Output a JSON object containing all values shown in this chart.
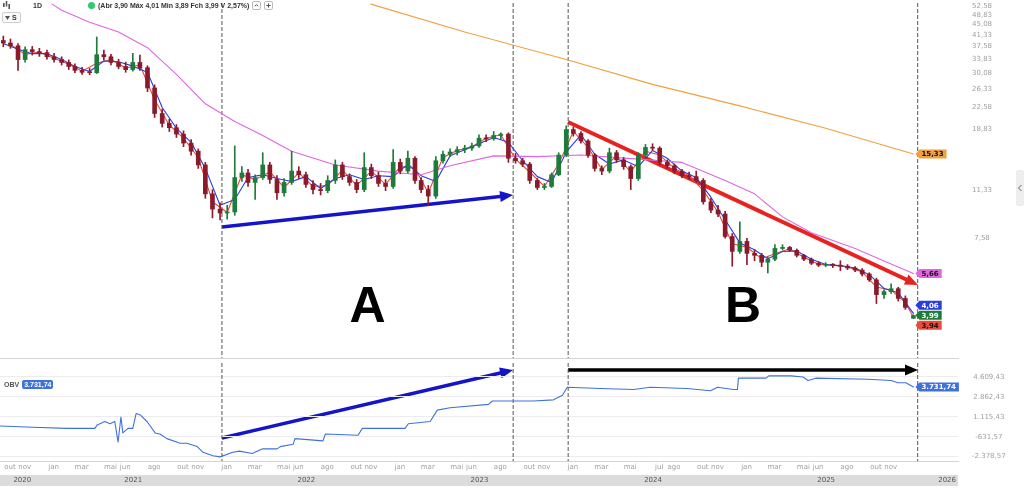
{
  "chart_data": [
    {
      "type": "candlestick",
      "title": "1D",
      "subtitle": "(Abr 3,90 Máx 4,01 Min 3,89 Fch 3,99 V 2,57%)",
      "annotations": [
        "S",
        "A",
        "B"
      ],
      "x": [
        "2020-10-01",
        "2020-10-16",
        "2020-11-01",
        "2020-11-16",
        "2020-12-01",
        "2020-12-16",
        "2021-01-01",
        "2021-01-16",
        "2021-02-01",
        "2021-02-16",
        "2021-03-01",
        "2021-03-16",
        "2021-04-01",
        "2021-04-16",
        "2021-05-01",
        "2021-05-16",
        "2021-06-01",
        "2021-06-16",
        "2021-07-01",
        "2021-07-16",
        "2021-08-01",
        "2021-08-16",
        "2021-09-01",
        "2021-09-16",
        "2021-10-01",
        "2021-10-16",
        "2021-11-01",
        "2021-11-16",
        "2021-12-01",
        "2021-12-16",
        "2022-01-01",
        "2022-01-16",
        "2022-02-01",
        "2022-02-16",
        "2022-03-01",
        "2022-03-16",
        "2022-04-01",
        "2022-04-16",
        "2022-05-01",
        "2022-05-16",
        "2022-06-01",
        "2022-06-16",
        "2022-07-01",
        "2022-07-16",
        "2022-08-01",
        "2022-08-16",
        "2022-09-01",
        "2022-09-16",
        "2022-10-01",
        "2022-10-16",
        "2022-11-01",
        "2022-11-16",
        "2022-12-01",
        "2022-12-16",
        "2023-01-01",
        "2023-01-16",
        "2023-02-01",
        "2023-02-16",
        "2023-03-01",
        "2023-03-16",
        "2023-04-01",
        "2023-04-16",
        "2023-05-01",
        "2023-05-16",
        "2023-06-01",
        "2023-06-16",
        "2023-07-01",
        "2023-07-16",
        "2023-08-01",
        "2023-08-16",
        "2023-09-01",
        "2023-09-16",
        "2023-10-01",
        "2023-10-16",
        "2023-11-01",
        "2023-11-16",
        "2023-12-01",
        "2023-12-16",
        "2024-01-01",
        "2024-01-16",
        "2024-02-01",
        "2024-02-16",
        "2024-03-01",
        "2024-03-16",
        "2024-04-01",
        "2024-04-16",
        "2024-05-01",
        "2024-05-16",
        "2024-06-01",
        "2024-06-16",
        "2024-07-01",
        "2024-07-16",
        "2024-08-01",
        "2024-08-16",
        "2024-09-01",
        "2024-09-16",
        "2024-10-01",
        "2024-10-16",
        "2024-11-01",
        "2024-11-16",
        "2024-12-01",
        "2024-12-16",
        "2025-01-01",
        "2025-01-16",
        "2025-02-01",
        "2025-02-16",
        "2025-03-01",
        "2025-03-16",
        "2025-04-01",
        "2025-04-16",
        "2025-05-01",
        "2025-05-16",
        "2025-06-01",
        "2025-06-16",
        "2025-07-01",
        "2025-07-16",
        "2025-08-01",
        "2025-08-16",
        "2025-09-01",
        "2025-09-16",
        "2025-10-01",
        "2025-10-16",
        "2025-11-01",
        "2025-11-16",
        "2025-12-01",
        "2025-12-16",
        "2026-01-02"
      ],
      "ohlc": [
        [
          39.5,
          41.0,
          37.5,
          38.7
        ],
        [
          38.7,
          40.0,
          37.0,
          37.8
        ],
        [
          37.8,
          38.5,
          30.8,
          33.7
        ],
        [
          33.7,
          37.5,
          33.0,
          36.6
        ],
        [
          36.6,
          37.6,
          35.0,
          36.0
        ],
        [
          36.0,
          37.0,
          34.6,
          35.7
        ],
        [
          35.7,
          36.5,
          33.8,
          34.5
        ],
        [
          34.5,
          35.5,
          33.0,
          33.7
        ],
        [
          33.7,
          34.5,
          32.2,
          32.9
        ],
        [
          32.9,
          33.6,
          31.0,
          31.8
        ],
        [
          31.8,
          32.5,
          30.2,
          30.8
        ],
        [
          30.8,
          31.6,
          29.8,
          30.3
        ],
        [
          30.3,
          31.3,
          29.7,
          30.2
        ],
        [
          30.2,
          40.7,
          30.0,
          35.1
        ],
        [
          35.1,
          36.5,
          33.5,
          34.5
        ],
        [
          34.5,
          35.2,
          32.2,
          32.9
        ],
        [
          32.9,
          33.8,
          31.2,
          31.8
        ],
        [
          31.8,
          33.0,
          30.3,
          31.0
        ],
        [
          31.0,
          35.5,
          30.6,
          32.9
        ],
        [
          32.9,
          35.0,
          30.8,
          31.5
        ],
        [
          31.5,
          32.0,
          25.8,
          26.6
        ],
        [
          26.6,
          27.3,
          20.8,
          21.5
        ],
        [
          21.5,
          22.3,
          19.2,
          19.8
        ],
        [
          19.8,
          20.5,
          18.5,
          19.1
        ],
        [
          19.1,
          19.6,
          17.6,
          18.1
        ],
        [
          18.1,
          18.6,
          16.3,
          16.8
        ],
        [
          16.8,
          17.3,
          15.2,
          15.7
        ],
        [
          15.7,
          16.0,
          13.6,
          14.0
        ],
        [
          14.0,
          14.3,
          10.6,
          11.0
        ],
        [
          11.0,
          11.4,
          9.0,
          9.69
        ],
        [
          9.69,
          10.2,
          8.85,
          9.38
        ],
        [
          9.38,
          10.0,
          8.9,
          9.46
        ],
        [
          9.46,
          16.4,
          9.2,
          12.6
        ],
        [
          12.6,
          13.8,
          12.2,
          13.1
        ],
        [
          13.1,
          13.5,
          11.7,
          12.1
        ],
        [
          12.1,
          12.9,
          10.5,
          12.6
        ],
        [
          12.6,
          15.5,
          12.4,
          14.0
        ],
        [
          14.0,
          14.3,
          12.0,
          12.4
        ],
        [
          12.4,
          12.8,
          10.5,
          11.1
        ],
        [
          11.1,
          12.5,
          10.8,
          12.1
        ],
        [
          12.1,
          15.7,
          11.9,
          13.3
        ],
        [
          13.3,
          13.8,
          12.5,
          12.9
        ],
        [
          12.9,
          13.2,
          11.6,
          11.9
        ],
        [
          11.9,
          12.3,
          11.0,
          11.4
        ],
        [
          11.4,
          12.0,
          10.9,
          11.3
        ],
        [
          11.3,
          12.8,
          11.1,
          12.3
        ],
        [
          12.3,
          14.6,
          12.0,
          14.0
        ],
        [
          14.0,
          14.3,
          12.4,
          12.7
        ],
        [
          12.7,
          13.0,
          11.8,
          12.1
        ],
        [
          12.1,
          12.4,
          11.1,
          11.4
        ],
        [
          11.4,
          15.5,
          11.2,
          13.7
        ],
        [
          13.7,
          14.1,
          12.5,
          12.8
        ],
        [
          12.8,
          13.2,
          11.7,
          12.0
        ],
        [
          12.0,
          12.4,
          11.3,
          11.7
        ],
        [
          11.7,
          15.9,
          11.5,
          14.3
        ],
        [
          14.3,
          14.7,
          13.0,
          13.3
        ],
        [
          13.3,
          15.7,
          13.1,
          14.8
        ],
        [
          14.8,
          15.0,
          12.0,
          12.3
        ],
        [
          12.3,
          12.6,
          11.1,
          11.4
        ],
        [
          11.4,
          11.8,
          10.0,
          10.8
        ],
        [
          10.8,
          15.0,
          10.6,
          14.5
        ],
        [
          14.5,
          15.7,
          14.2,
          15.3
        ],
        [
          15.3,
          16.0,
          15.0,
          15.6
        ],
        [
          15.6,
          16.3,
          15.2,
          15.9
        ],
        [
          15.9,
          16.5,
          15.5,
          16.1
        ],
        [
          16.1,
          16.8,
          15.8,
          16.4
        ],
        [
          16.4,
          18.0,
          16.2,
          17.5
        ],
        [
          17.5,
          18.0,
          17.0,
          17.4
        ],
        [
          17.4,
          18.5,
          17.2,
          17.9
        ],
        [
          17.9,
          18.3,
          17.3,
          18.1
        ],
        [
          18.1,
          18.3,
          14.3,
          14.8
        ],
        [
          14.8,
          15.4,
          14.2,
          14.5
        ],
        [
          14.5,
          14.8,
          13.8,
          14.1
        ],
        [
          14.1,
          14.3,
          12.0,
          12.3
        ],
        [
          12.3,
          12.5,
          11.4,
          11.6
        ],
        [
          11.6,
          12.0,
          11.4,
          11.7
        ],
        [
          11.7,
          13.1,
          11.6,
          12.9
        ],
        [
          12.9,
          15.5,
          12.8,
          15.2
        ],
        [
          15.2,
          19.4,
          15.0,
          18.8
        ],
        [
          18.8,
          19.2,
          17.8,
          18.2
        ],
        [
          18.2,
          18.5,
          16.8,
          17.1
        ],
        [
          17.1,
          17.3,
          14.9,
          15.2
        ],
        [
          15.2,
          15.4,
          13.3,
          13.6
        ],
        [
          13.6,
          13.9,
          12.9,
          13.3
        ],
        [
          13.3,
          16.1,
          13.1,
          15.5
        ],
        [
          15.5,
          15.8,
          14.3,
          14.6
        ],
        [
          14.6,
          14.9,
          13.5,
          13.8
        ],
        [
          13.8,
          14.0,
          11.4,
          12.5
        ],
        [
          12.5,
          15.5,
          12.3,
          15.2
        ],
        [
          15.2,
          16.6,
          15.0,
          16.2
        ],
        [
          16.2,
          16.7,
          15.8,
          16.1
        ],
        [
          16.1,
          16.3,
          14.0,
          14.3
        ],
        [
          14.3,
          14.6,
          13.6,
          13.9
        ],
        [
          13.9,
          14.1,
          13.0,
          13.3
        ],
        [
          13.3,
          13.5,
          12.6,
          12.8
        ],
        [
          12.8,
          13.2,
          12.4,
          12.7
        ],
        [
          12.7,
          13.3,
          12.1,
          12.3
        ],
        [
          12.3,
          12.5,
          10.1,
          10.3
        ],
        [
          10.3,
          10.6,
          9.4,
          9.61
        ],
        [
          9.61,
          10.0,
          9.1,
          9.3
        ],
        [
          9.3,
          9.5,
          7.6,
          7.71
        ],
        [
          7.71,
          7.9,
          6.02,
          6.81
        ],
        [
          6.81,
          8.71,
          6.7,
          7.4
        ],
        [
          7.4,
          7.6,
          6.1,
          6.7
        ],
        [
          6.7,
          6.9,
          6.3,
          6.59
        ],
        [
          6.59,
          6.7,
          6.0,
          6.22
        ],
        [
          6.22,
          6.5,
          5.69,
          6.38
        ],
        [
          6.38,
          7.2,
          6.3,
          6.98
        ],
        [
          6.98,
          7.2,
          6.9,
          7.04
        ],
        [
          7.04,
          7.1,
          6.8,
          6.87
        ],
        [
          6.87,
          6.95,
          6.5,
          6.59
        ],
        [
          6.59,
          6.65,
          6.3,
          6.38
        ],
        [
          6.38,
          6.45,
          6.1,
          6.17
        ],
        [
          6.17,
          6.25,
          6.0,
          6.07
        ],
        [
          6.07,
          6.2,
          6.0,
          6.1
        ],
        [
          6.1,
          6.15,
          5.95,
          6.07
        ],
        [
          6.07,
          6.3,
          5.8,
          6.02
        ],
        [
          6.02,
          6.1,
          5.85,
          5.93
        ],
        [
          5.93,
          6.0,
          5.75,
          5.83
        ],
        [
          5.83,
          5.9,
          5.55,
          5.64
        ],
        [
          5.64,
          5.7,
          5.3,
          5.37
        ],
        [
          5.37,
          5.45,
          4.41,
          4.75
        ],
        [
          4.75,
          4.95,
          4.6,
          4.87
        ],
        [
          4.87,
          5.2,
          4.8,
          4.99
        ],
        [
          4.99,
          5.05,
          4.5,
          4.6
        ],
        [
          4.6,
          4.7,
          4.2,
          4.27
        ],
        [
          3.9,
          4.01,
          3.89,
          3.99
        ]
      ],
      "colors": [
        "#8b1a2b",
        "#8b1a2b",
        "#8b1a2b",
        "#1e7b3c",
        "#8b1a2b",
        "#8b1a2b",
        "#8b1a2b",
        "#8b1a2b",
        "#8b1a2b",
        "#8b1a2b",
        "#8b1a2b",
        "#8b1a2b",
        "#8b1a2b",
        "#1e7b3c",
        "#8b1a2b",
        "#8b1a2b",
        "#8b1a2b",
        "#8b1a2b",
        "#1e7b3c",
        "#8b1a2b",
        "#8b1a2b",
        "#8b1a2b",
        "#8b1a2b",
        "#8b1a2b",
        "#8b1a2b",
        "#8b1a2b",
        "#8b1a2b",
        "#8b1a2b",
        "#8b1a2b",
        "#8b1a2b",
        "#8b1a2b",
        "#1e7b3c",
        "#1e7b3c",
        "#1e7b3c",
        "#8b1a2b",
        "#1e7b3c",
        "#1e7b3c",
        "#8b1a2b",
        "#8b1a2b",
        "#1e7b3c",
        "#1e7b3c",
        "#8b1a2b",
        "#8b1a2b",
        "#8b1a2b",
        "#8b1a2b",
        "#1e7b3c",
        "#1e7b3c",
        "#8b1a2b",
        "#8b1a2b",
        "#8b1a2b",
        "#1e7b3c",
        "#8b1a2b",
        "#8b1a2b",
        "#8b1a2b",
        "#1e7b3c",
        "#8b1a2b",
        "#1e7b3c",
        "#8b1a2b",
        "#8b1a2b",
        "#8b1a2b",
        "#1e7b3c",
        "#1e7b3c",
        "#1e7b3c",
        "#1e7b3c",
        "#1e7b3c",
        "#1e7b3c",
        "#1e7b3c",
        "#8b1a2b",
        "#1e7b3c",
        "#1e7b3c",
        "#8b1a2b",
        "#8b1a2b",
        "#8b1a2b",
        "#8b1a2b",
        "#8b1a2b",
        "#1e7b3c",
        "#1e7b3c",
        "#1e7b3c",
        "#1e7b3c",
        "#8b1a2b",
        "#8b1a2b",
        "#8b1a2b",
        "#8b1a2b",
        "#8b1a2b",
        "#1e7b3c",
        "#8b1a2b",
        "#8b1a2b",
        "#8b1a2b",
        "#1e7b3c",
        "#1e7b3c",
        "#8b1a2b",
        "#8b1a2b",
        "#8b1a2b",
        "#8b1a2b",
        "#8b1a2b",
        "#8b1a2b",
        "#8b1a2b",
        "#8b1a2b",
        "#8b1a2b",
        "#8b1a2b",
        "#8b1a2b",
        "#8b1a2b",
        "#1e7b3c",
        "#8b1a2b",
        "#8b1a2b",
        "#8b1a2b",
        "#1e7b3c",
        "#1e7b3c",
        "#1e7b3c",
        "#8b1a2b",
        "#8b1a2b",
        "#8b1a2b",
        "#8b1a2b",
        "#8b1a2b",
        "#1e7b3c",
        "#8b1a2b",
        "#8b1a2b",
        "#8b1a2b",
        "#8b1a2b",
        "#8b1a2b",
        "#8b1a2b",
        "#8b1a2b",
        "#1e7b3c",
        "#1e7b3c",
        "#8b1a2b",
        "#8b1a2b",
        "#1e7b3c"
      ],
      "value_labels": [
        null,
        null,
        null,
        null,
        null,
        null,
        null,
        null,
        null,
        null,
        null,
        null,
        null,
        null,
        null,
        null,
        null,
        null,
        null,
        null,
        null,
        null,
        null,
        null,
        null,
        null,
        null,
        null,
        null,
        null,
        null,
        null,
        null,
        null,
        null,
        null,
        null,
        null,
        null,
        null,
        null,
        null,
        null,
        null,
        null,
        null,
        null,
        null,
        null,
        null,
        null,
        null,
        null,
        null,
        null,
        null,
        null,
        null,
        null,
        null,
        null,
        null,
        null,
        null,
        null,
        null,
        null,
        null,
        null,
        null,
        null,
        null,
        null,
        null,
        null,
        null,
        null,
        null,
        null,
        null,
        null,
        null,
        null,
        null,
        null,
        null,
        null,
        null,
        null,
        null,
        null,
        null,
        null,
        null,
        null,
        null,
        null,
        null,
        null,
        null,
        null,
        null,
        null,
        null,
        null,
        null,
        null,
        null,
        null,
        null,
        null,
        null,
        null,
        null,
        null,
        null,
        null,
        null,
        null,
        null,
        null,
        null,
        null,
        null,
        null,
        null,
        "3,99"
      ],
      "series": [
        {
          "type": "line",
          "color": "#f0a040",
          "x": [
            "2022-11-15",
            "2023-06-01",
            "2024-01-01",
            "2024-07-01",
            "2025-01-01",
            "2025-07-01",
            "2026-01-02"
          ],
          "values": [
            53.5,
            42.4,
            33.7,
            27.4,
            22.9,
            19.0,
            15.33
          ],
          "value_labels": [
            null,
            null,
            null,
            null,
            null,
            null,
            "15,33"
          ]
        },
        {
          "type": "line",
          "color": "#e066e0",
          "x": [
            "2021-01-12",
            "2021-02-01",
            "2021-04-01",
            "2021-06-01",
            "2021-08-01",
            "2021-10-01",
            "2021-12-01",
            "2022-02-01",
            "2022-04-01",
            "2022-06-01",
            "2022-09-01",
            "2022-12-01",
            "2023-03-01",
            "2023-05-01",
            "2023-08-01",
            "2023-11-01",
            "2024-02-01",
            "2024-06-01",
            "2024-09-01",
            "2024-12-01",
            "2025-02-01",
            "2025-04-01",
            "2025-06-01",
            "2025-09-01",
            "2025-11-01",
            "2026-01-02"
          ],
          "values": [
            53.5,
            50.8,
            46.0,
            42.4,
            37.2,
            29.8,
            23.3,
            20.1,
            17.9,
            15.7,
            14.0,
            13.3,
            12.9,
            13.9,
            15.1,
            15.0,
            15.2,
            14.7,
            14.3,
            12.3,
            11.0,
            9.08,
            7.96,
            6.98,
            6.28,
            5.66
          ],
          "value_labels": [
            null,
            null,
            null,
            null,
            null,
            null,
            null,
            null,
            null,
            null,
            null,
            null,
            null,
            null,
            null,
            null,
            null,
            null,
            null,
            null,
            null,
            null,
            null,
            null,
            null,
            "5,66"
          ]
        },
        {
          "type": "line",
          "color": "#2a3de0",
          "x": [
            "2020-10-01",
            "2020-11-01",
            "2020-12-01",
            "2021-01-01",
            "2021-02-01",
            "2021-03-01",
            "2021-04-01",
            "2021-05-01",
            "2021-06-01",
            "2021-07-01",
            "2021-08-01",
            "2021-09-01",
            "2021-10-01",
            "2021-11-01",
            "2021-12-01",
            "2022-01-01",
            "2022-02-01",
            "2022-03-01",
            "2022-04-01",
            "2022-05-01",
            "2022-06-01",
            "2022-07-01",
            "2022-08-01",
            "2022-09-01",
            "2022-10-01",
            "2022-11-01",
            "2022-12-01",
            "2023-01-01",
            "2023-02-01",
            "2023-03-01",
            "2023-04-01",
            "2023-05-01",
            "2023-06-01",
            "2023-07-01",
            "2023-08-01",
            "2023-09-01",
            "2023-10-01",
            "2023-11-01",
            "2023-12-01",
            "2024-01-01",
            "2024-02-01",
            "2024-03-01",
            "2024-04-01",
            "2024-05-01",
            "2024-06-01",
            "2024-07-01",
            "2024-08-01",
            "2024-09-01",
            "2024-10-01",
            "2024-11-01",
            "2024-12-01",
            "2025-01-01",
            "2025-02-01",
            "2025-03-01",
            "2025-04-01",
            "2025-05-01",
            "2025-06-01",
            "2025-07-01",
            "2025-08-01",
            "2025-09-01",
            "2025-10-01",
            "2025-11-01",
            "2025-12-01",
            "2026-01-02"
          ],
          "values": [
            38.5,
            36.7,
            35.4,
            35.4,
            33.7,
            31.8,
            30.5,
            33.3,
            33.1,
            31.9,
            30.3,
            22.6,
            19.0,
            16.9,
            13.6,
            10.0,
            10.5,
            12.6,
            12.9,
            12.5,
            12.2,
            12.7,
            11.5,
            12.5,
            12.9,
            12.4,
            12.8,
            12.7,
            14.1,
            12.8,
            12.2,
            15.1,
            15.9,
            16.7,
            17.6,
            16.9,
            14.5,
            12.7,
            12.1,
            15.6,
            18.0,
            15.3,
            14.1,
            14.6,
            13.8,
            15.8,
            14.8,
            13.3,
            12.6,
            10.7,
            8.87,
            7.31,
            6.9,
            6.4,
            6.8,
            6.83,
            6.38,
            6.1,
            6.05,
            5.93,
            5.61,
            5.0,
            4.82,
            4.06
          ],
          "value_labels": [
            null,
            null,
            null,
            null,
            null,
            null,
            null,
            null,
            null,
            null,
            null,
            null,
            null,
            null,
            null,
            null,
            null,
            null,
            null,
            null,
            null,
            null,
            null,
            null,
            null,
            null,
            null,
            null,
            null,
            null,
            null,
            null,
            null,
            null,
            null,
            null,
            null,
            null,
            null,
            null,
            null,
            null,
            null,
            null,
            null,
            null,
            null,
            null,
            null,
            null,
            null,
            null,
            null,
            null,
            null,
            null,
            null,
            null,
            null,
            null,
            null,
            null,
            null,
            "4,06"
          ]
        },
        {
          "type": "line",
          "color": "#e84a3c",
          "x": [
            "2020-10-16",
            "2020-11-16",
            "2020-12-16",
            "2021-01-16",
            "2021-02-16",
            "2021-03-16",
            "2021-04-16",
            "2021-05-16",
            "2021-06-16",
            "2021-07-16",
            "2021-08-16",
            "2021-09-16",
            "2021-10-16",
            "2021-11-16",
            "2021-12-16",
            "2022-01-16",
            "2022-02-16",
            "2022-03-16",
            "2022-04-16",
            "2022-05-16",
            "2022-06-16",
            "2022-07-16",
            "2022-08-16",
            "2022-09-16",
            "2022-10-16",
            "2022-11-16",
            "2022-12-16",
            "2023-01-16",
            "2023-02-16",
            "2023-03-16",
            "2023-04-16",
            "2023-05-16",
            "2023-06-16",
            "2023-07-16",
            "2023-08-16",
            "2023-09-16",
            "2023-10-16",
            "2023-11-16",
            "2023-12-16",
            "2024-01-16",
            "2024-02-16",
            "2024-03-16",
            "2024-04-16",
            "2024-05-16",
            "2024-06-16",
            "2024-07-16",
            "2024-08-16",
            "2024-09-16",
            "2024-10-16",
            "2024-11-16",
            "2024-12-16",
            "2025-01-16",
            "2025-02-16",
            "2025-03-16",
            "2025-04-16",
            "2025-05-16",
            "2025-06-16",
            "2025-07-16",
            "2025-08-16",
            "2025-09-16",
            "2025-10-16",
            "2025-11-16",
            "2025-12-16",
            "2026-01-02"
          ],
          "values": [
            38.2,
            35.2,
            35.9,
            34.1,
            32.4,
            30.6,
            32.7,
            33.7,
            31.4,
            32.2,
            24.1,
            19.5,
            17.5,
            14.9,
            10.3,
            9.42,
            12.9,
            12.4,
            13.2,
            11.6,
            13.1,
            11.7,
            11.8,
            13.4,
            11.8,
            13.3,
            11.9,
            13.8,
            13.6,
            11.1,
            14.9,
            15.8,
            16.3,
            17.5,
            18.0,
            14.7,
            13.2,
            11.7,
            14.1,
            18.5,
            16.2,
            13.5,
            15.1,
            13.2,
            15.7,
            15.2,
            13.6,
            12.8,
            11.3,
            9.46,
            7.26,
            7.05,
            6.41,
            6.68,
            6.96,
            6.49,
            6.12,
            6.07,
            5.98,
            5.74,
            5.06,
            4.93,
            4.44,
            3.94
          ],
          "value_labels": [
            null,
            null,
            null,
            null,
            null,
            null,
            null,
            null,
            null,
            null,
            null,
            null,
            null,
            null,
            null,
            null,
            null,
            null,
            null,
            null,
            null,
            null,
            null,
            null,
            null,
            null,
            null,
            null,
            null,
            null,
            null,
            null,
            null,
            null,
            null,
            null,
            null,
            null,
            null,
            null,
            null,
            null,
            null,
            null,
            null,
            null,
            null,
            null,
            null,
            null,
            null,
            null,
            null,
            null,
            null,
            null,
            null,
            null,
            null,
            null,
            null,
            null,
            null,
            "3,94"
          ]
        }
      ],
      "log": true,
      "xlim": [
        "2020-09-24",
        "2026-04-06"
      ],
      "ylim": [
        2.8,
        54
      ],
      "yticks": [
        {
          "value": 7.58,
          "label": "7,58"
        },
        {
          "value": 11.33,
          "label": "11,33"
        },
        {
          "value": 18.83,
          "label": "18,83"
        },
        {
          "value": 22.58,
          "label": "22,58"
        },
        {
          "value": 26.33,
          "label": "26,33"
        },
        {
          "value": 30.08,
          "label": "30,08"
        },
        {
          "value": 33.83,
          "label": "33,83"
        },
        {
          "value": 37.58,
          "label": "37,58"
        },
        {
          "value": 41.33,
          "label": "41,33"
        },
        {
          "value": 45.08,
          "label": "45,08"
        },
        {
          "value": 48.83,
          "label": "48,83"
        },
        {
          "value": 52.58,
          "label": "52,58"
        }
      ],
      "tick_labels": "y",
      "ref_lines": [
        {
          "axis": "x",
          "value": "2022-01-05",
          "color": "#555555",
          "line_style": "dashed"
        },
        {
          "axis": "x",
          "value": "2023-09-11",
          "color": "#555555",
          "line_style": "dashed"
        },
        {
          "axis": "x",
          "value": "2024-01-05",
          "color": "#555555",
          "line_style": "dashed"
        },
        {
          "axis": "x",
          "value": "2026-01-11",
          "color": "#555555",
          "line_style": "dashed"
        }
      ]
    },
    {
      "type": "line",
      "title": "OBV",
      "subtitle": "3.731,74",
      "x": [
        "2020-09-24",
        "2020-12-02",
        "2021-02-12",
        "2021-04-12",
        "2021-04-17",
        "2021-05-03",
        "2021-05-14",
        "2021-05-24",
        "2021-05-31",
        "2021-06-06",
        "2021-06-10",
        "2021-06-21",
        "2021-07-01",
        "2021-07-08",
        "2021-07-16",
        "2021-07-31",
        "2021-08-17",
        "2021-08-27",
        "2021-09-11",
        "2021-10-09",
        "2021-10-23",
        "2021-11-14",
        "2021-11-26",
        "2021-12-17",
        "2022-01-01",
        "2022-01-28",
        "2022-02-11",
        "2022-03-10",
        "2022-03-31",
        "2022-05-01",
        "2022-05-08",
        "2022-06-04",
        "2022-06-08",
        "2022-08-06",
        "2022-08-11",
        "2022-10-19",
        "2022-10-28",
        "2023-01-26",
        "2023-02-02",
        "2023-03-20",
        "2023-04-04",
        "2023-05-01",
        "2023-07-21",
        "2023-07-29",
        "2023-09-22",
        "2023-10-24",
        "2023-12-05",
        "2023-12-24",
        "2024-01-03",
        "2024-03-13",
        "2024-05-22",
        "2024-06-26",
        "2024-09-12",
        "2024-10-31",
        "2024-11-15",
        "2024-12-18",
        "2024-12-27",
        "2024-12-29",
        "2025-02-25",
        "2025-03-03",
        "2025-04-19",
        "2025-05-14",
        "2025-05-25",
        "2025-06-10",
        "2025-09-28",
        "2025-11-16",
        "2025-11-30",
        "2025-12-17",
        "2026-01-02"
      ],
      "values": [
        300,
        200,
        100,
        100,
        400,
        700,
        500,
        700,
        -1100,
        1100,
        -300,
        100,
        100,
        1400,
        1300,
        700,
        -300,
        -400,
        -800,
        -1200,
        -1200,
        -1500,
        -2000,
        -2300,
        -2400,
        -2000,
        -1900,
        -2100,
        -1700,
        -1700,
        -1500,
        -1300,
        -800,
        -1000,
        -400,
        -500,
        100,
        100,
        500,
        700,
        1700,
        1900,
        2200,
        2500,
        2500,
        2500,
        2600,
        3000,
        3700,
        3600,
        3500,
        3700,
        3600,
        3400,
        3700,
        3500,
        3500,
        4500,
        4500,
        4700,
        4700,
        4600,
        4300,
        4500,
        4400,
        4300,
        4100,
        4100,
        3731.74
      ],
      "value_labels": [
        null,
        null,
        null,
        null,
        null,
        null,
        null,
        null,
        null,
        null,
        null,
        null,
        null,
        null,
        null,
        null,
        null,
        null,
        null,
        null,
        null,
        null,
        null,
        null,
        null,
        null,
        null,
        null,
        null,
        null,
        null,
        null,
        null,
        null,
        null,
        null,
        null,
        null,
        null,
        null,
        null,
        null,
        null,
        null,
        null,
        null,
        null,
        null,
        null,
        null,
        null,
        null,
        null,
        null,
        null,
        null,
        null,
        null,
        null,
        null,
        null,
        null,
        null,
        null,
        null,
        null,
        null,
        null,
        "3.731,74"
      ],
      "color": "#3f72d9",
      "xlim": [
        "2020-09-24",
        "2026-04-06"
      ],
      "xticks": [
        {
          "value": "2020-10-15",
          "label": "out"
        },
        {
          "value": "2020-11-15",
          "label": "nov"
        },
        {
          "value": "2021-01-15",
          "label": "jan"
        },
        {
          "value": "2021-03-15",
          "label": "mar"
        },
        {
          "value": "2021-05-15",
          "label": "mai"
        },
        {
          "value": "2021-06-15",
          "label": "jun"
        },
        {
          "value": "2021-08-15",
          "label": "ago"
        },
        {
          "value": "2021-10-15",
          "label": "out"
        },
        {
          "value": "2021-11-15",
          "label": "nov"
        },
        {
          "value": "2022-01-15",
          "label": "jan"
        },
        {
          "value": "2022-03-15",
          "label": "mar"
        },
        {
          "value": "2022-05-15",
          "label": "mai"
        },
        {
          "value": "2022-06-15",
          "label": "jun"
        },
        {
          "value": "2022-08-15",
          "label": "ago"
        },
        {
          "value": "2022-10-15",
          "label": "out"
        },
        {
          "value": "2022-11-15",
          "label": "nov"
        },
        {
          "value": "2023-01-15",
          "label": "jan"
        },
        {
          "value": "2023-03-15",
          "label": "mar"
        },
        {
          "value": "2023-05-15",
          "label": "mai"
        },
        {
          "value": "2023-06-15",
          "label": "jun"
        },
        {
          "value": "2023-08-15",
          "label": "ago"
        },
        {
          "value": "2023-10-15",
          "label": "out"
        },
        {
          "value": "2023-11-15",
          "label": "nov"
        },
        {
          "value": "2024-01-15",
          "label": "jan"
        },
        {
          "value": "2024-03-15",
          "label": "mar"
        },
        {
          "value": "2024-05-15",
          "label": "mai"
        },
        {
          "value": "2024-07-15",
          "label": "jul"
        },
        {
          "value": "2024-08-15",
          "label": "ago"
        },
        {
          "value": "2024-10-15",
          "label": "out"
        },
        {
          "value": "2024-11-15",
          "label": "nov"
        },
        {
          "value": "2025-01-15",
          "label": "jan"
        },
        {
          "value": "2025-03-15",
          "label": "mar"
        },
        {
          "value": "2025-05-15",
          "label": "mai"
        },
        {
          "value": "2025-06-15",
          "label": "jun"
        },
        {
          "value": "2025-08-15",
          "label": "ago"
        },
        {
          "value": "2025-10-15",
          "label": "out"
        },
        {
          "value": "2025-11-15",
          "label": "nov"
        }
      ],
      "x2lim": [
        "2020-09-24",
        "2026-04-06"
      ],
      "x2ticks": [
        {
          "value": "2020-11-10",
          "label": "2020"
        },
        {
          "value": "2021-07-02",
          "label": "2021"
        },
        {
          "value": "2022-07-02",
          "label": "2022"
        },
        {
          "value": "2023-07-02",
          "label": "2023"
        },
        {
          "value": "2024-07-02",
          "label": "2024"
        },
        {
          "value": "2025-07-02",
          "label": "2025"
        },
        {
          "value": "2026-03-14",
          "label": "2026"
        }
      ],
      "ylim": [
        -2780,
        5830
      ],
      "yticks": [
        {
          "value": 4609.43,
          "label": "4.609,43"
        },
        {
          "value": 2862.43,
          "label": "2.862,43"
        },
        {
          "value": 1115.43,
          "label": "1.115,43"
        },
        {
          "value": -631.57,
          "label": "-631,57"
        },
        {
          "value": -2378.57,
          "label": "-2.378,57"
        }
      ],
      "grid": "y",
      "ref_lines": [
        {
          "axis": "x",
          "value": "2022-01-05",
          "color": "#555555",
          "line_style": "dashed"
        },
        {
          "axis": "x",
          "value": "2023-09-11",
          "color": "#555555",
          "line_style": "dashed"
        },
        {
          "axis": "x",
          "value": "2024-01-05",
          "color": "#555555",
          "line_style": "dashed"
        },
        {
          "axis": "x",
          "value": "2026-01-11",
          "color": "#555555",
          "line_style": "dashed"
        }
      ]
    }
  ]
}
